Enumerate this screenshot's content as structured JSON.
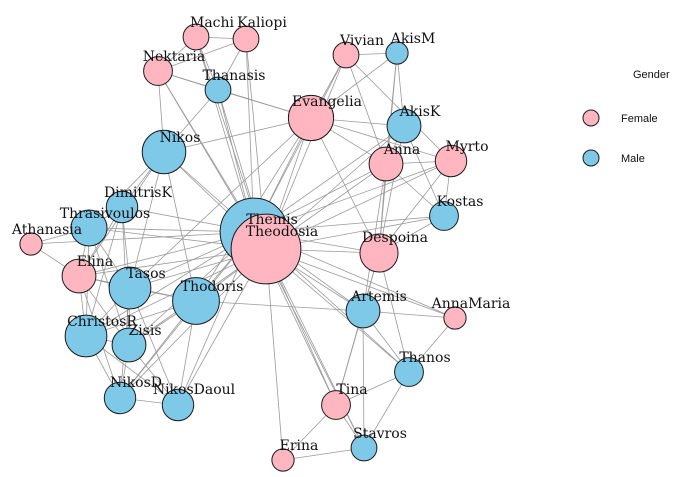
{
  "colors": {
    "female": "#ffb6c1",
    "male": "#7ec8e8",
    "edge": "#9a9a9a"
  },
  "legend": {
    "title": "Gender",
    "items": [
      {
        "label": "Female",
        "color": "#ffb6c1"
      },
      {
        "label": "Male",
        "color": "#7ec8e8"
      }
    ]
  },
  "nodes": [
    {
      "id": "Machi",
      "label": "Machi",
      "gender": "female",
      "degree": 3
    },
    {
      "id": "Kaliopi",
      "label": "Kaliopi",
      "gender": "female",
      "degree": 3
    },
    {
      "id": "Vivian",
      "label": "Vivian",
      "gender": "female",
      "degree": 3
    },
    {
      "id": "AkisM",
      "label": "AkisM",
      "gender": "male",
      "degree": 2
    },
    {
      "id": "Nektaria",
      "label": "Nektaria",
      "gender": "female",
      "degree": 4
    },
    {
      "id": "Thanasis",
      "label": "Thanasis",
      "gender": "male",
      "degree": 3
    },
    {
      "id": "Evangelia",
      "label": "Evangelia",
      "gender": "female",
      "degree": 12
    },
    {
      "id": "AkisK",
      "label": "AkisK",
      "gender": "male",
      "degree": 6
    },
    {
      "id": "Nikos",
      "label": "Nikos",
      "gender": "male",
      "degree": 11
    },
    {
      "id": "Anna",
      "label": "Anna",
      "gender": "female",
      "degree": 6
    },
    {
      "id": "Myrto",
      "label": "Myrto",
      "gender": "female",
      "degree": 5
    },
    {
      "id": "DimitrisK",
      "label": "DimitrisK",
      "gender": "male",
      "degree": 5
    },
    {
      "id": "Kostas",
      "label": "Kostas",
      "gender": "male",
      "degree": 4
    },
    {
      "id": "Thrasivoulos",
      "label": "Thrasivoulos",
      "gender": "male",
      "degree": 7
    },
    {
      "id": "Themis",
      "label": "Themis",
      "gender": "male",
      "degree": 30
    },
    {
      "id": "Theodosia",
      "label": "Theodosia",
      "gender": "female",
      "degree": 32
    },
    {
      "id": "Athanasia",
      "label": "Athanasia",
      "gender": "female",
      "degree": 2
    },
    {
      "id": "Despoina",
      "label": "Despoina",
      "gender": "female",
      "degree": 8
    },
    {
      "id": "Elina",
      "label": "Elina",
      "gender": "female",
      "degree": 6
    },
    {
      "id": "Tasos",
      "label": "Tasos",
      "gender": "male",
      "degree": 10
    },
    {
      "id": "Thodoris",
      "label": "Thodoris",
      "gender": "male",
      "degree": 13
    },
    {
      "id": "Artemis",
      "label": "Artemis",
      "gender": "male",
      "degree": 6
    },
    {
      "id": "AnnaMaria",
      "label": "AnnaMaria",
      "gender": "female",
      "degree": 2
    },
    {
      "id": "ChristosR",
      "label": "ChristosR",
      "gender": "male",
      "degree": 10
    },
    {
      "id": "Zisis",
      "label": "Zisis",
      "gender": "male",
      "degree": 6
    },
    {
      "id": "Thanos",
      "label": "Thanos",
      "gender": "male",
      "degree": 4
    },
    {
      "id": "NikosD",
      "label": "NikosD",
      "gender": "male",
      "degree": 5
    },
    {
      "id": "NikosDaoul",
      "label": "NikosDaoul",
      "gender": "male",
      "degree": 5
    },
    {
      "id": "Tina",
      "label": "Tina",
      "gender": "female",
      "degree": 4
    },
    {
      "id": "Stavros",
      "label": "Stavros",
      "gender": "male",
      "degree": 3
    },
    {
      "id": "Erina",
      "label": "Erina",
      "gender": "female",
      "degree": 2
    }
  ],
  "edges": [
    [
      "Machi",
      "Kaliopi"
    ],
    [
      "Machi",
      "Thanasis"
    ],
    [
      "Machi",
      "Nektaria"
    ],
    [
      "Machi",
      "Themis"
    ],
    [
      "Machi",
      "Theodosia"
    ],
    [
      "Kaliopi",
      "Thanasis"
    ],
    [
      "Kaliopi",
      "Theodosia"
    ],
    [
      "Kaliopi",
      "Themis"
    ],
    [
      "Kaliopi",
      "Nektaria"
    ],
    [
      "Vivian",
      "AkisM"
    ],
    [
      "Vivian",
      "Evangelia"
    ],
    [
      "Vivian",
      "Anna"
    ],
    [
      "Vivian",
      "Themis"
    ],
    [
      "Vivian",
      "Theodosia"
    ],
    [
      "Vivian",
      "Myrto"
    ],
    [
      "AkisM",
      "AkisK"
    ],
    [
      "AkisM",
      "Anna"
    ],
    [
      "AkisM",
      "Evangelia"
    ],
    [
      "AkisM",
      "Despoina"
    ],
    [
      "Nektaria",
      "Thanasis"
    ],
    [
      "Nektaria",
      "Nikos"
    ],
    [
      "Nektaria",
      "Themis"
    ],
    [
      "Nektaria",
      "Theodosia"
    ],
    [
      "Nektaria",
      "Evangelia"
    ],
    [
      "Thanasis",
      "Themis"
    ],
    [
      "Thanasis",
      "Theodosia"
    ],
    [
      "Thanasis",
      "Evangelia"
    ],
    [
      "Thanasis",
      "Nikos"
    ],
    [
      "Evangelia",
      "Themis"
    ],
    [
      "Evangelia",
      "Theodosia"
    ],
    [
      "Evangelia",
      "AkisK"
    ],
    [
      "Evangelia",
      "Anna"
    ],
    [
      "Evangelia",
      "Nikos"
    ],
    [
      "Evangelia",
      "Myrto"
    ],
    [
      "Evangelia",
      "Despoina"
    ],
    [
      "Evangelia",
      "Thodoris"
    ],
    [
      "Evangelia",
      "Tasos"
    ],
    [
      "AkisK",
      "Anna"
    ],
    [
      "AkisK",
      "Themis"
    ],
    [
      "AkisK",
      "Theodosia"
    ],
    [
      "AkisK",
      "Despoina"
    ],
    [
      "AkisK",
      "Kostas"
    ],
    [
      "Anna",
      "Myrto"
    ],
    [
      "Anna",
      "Themis"
    ],
    [
      "Anna",
      "Theodosia"
    ],
    [
      "Anna",
      "Kostas"
    ],
    [
      "Anna",
      "Despoina"
    ],
    [
      "Anna",
      "Artemis"
    ],
    [
      "Myrto",
      "Kostas"
    ],
    [
      "Myrto",
      "Themis"
    ],
    [
      "Myrto",
      "Theodosia"
    ],
    [
      "Myrto",
      "Despoina"
    ],
    [
      "Kostas",
      "Theodosia"
    ],
    [
      "Kostas",
      "Themis"
    ],
    [
      "Nikos",
      "Themis"
    ],
    [
      "Nikos",
      "Theodosia"
    ],
    [
      "Nikos",
      "DimitrisK"
    ],
    [
      "Nikos",
      "Thrasivoulos"
    ],
    [
      "Nikos",
      "Tasos"
    ],
    [
      "Nikos",
      "Thodoris"
    ],
    [
      "Nikos",
      "Elina"
    ],
    [
      "DimitrisK",
      "Thrasivoulos"
    ],
    [
      "DimitrisK",
      "Themis"
    ],
    [
      "DimitrisK",
      "Tasos"
    ],
    [
      "DimitrisK",
      "ChristosR"
    ],
    [
      "DimitrisK",
      "Elina"
    ],
    [
      "DimitrisK",
      "Zisis"
    ],
    [
      "Thrasivoulos",
      "Athanasia"
    ],
    [
      "Thrasivoulos",
      "Themis"
    ],
    [
      "Thrasivoulos",
      "Theodosia"
    ],
    [
      "Thrasivoulos",
      "Tasos"
    ],
    [
      "Thrasivoulos",
      "ChristosR"
    ],
    [
      "Thrasivoulos",
      "Elina"
    ],
    [
      "Thrasivoulos",
      "Zisis"
    ],
    [
      "Athanasia",
      "Themis"
    ],
    [
      "Athanasia",
      "Elina"
    ],
    [
      "Themis",
      "Theodosia"
    ],
    [
      "Themis",
      "Despoina"
    ],
    [
      "Themis",
      "Elina"
    ],
    [
      "Themis",
      "Tasos"
    ],
    [
      "Themis",
      "Thodoris"
    ],
    [
      "Themis",
      "Artemis"
    ],
    [
      "Themis",
      "ChristosR"
    ],
    [
      "Themis",
      "Zisis"
    ],
    [
      "Themis",
      "Thanos"
    ],
    [
      "Themis",
      "NikosD"
    ],
    [
      "Themis",
      "NikosDaoul"
    ],
    [
      "Themis",
      "Tina"
    ],
    [
      "Themis",
      "Stavros"
    ],
    [
      "Themis",
      "AnnaMaria"
    ],
    [
      "Theodosia",
      "Despoina"
    ],
    [
      "Theodosia",
      "Elina"
    ],
    [
      "Theodosia",
      "Tasos"
    ],
    [
      "Theodosia",
      "Thodoris"
    ],
    [
      "Theodosia",
      "Artemis"
    ],
    [
      "Theodosia",
      "ChristosR"
    ],
    [
      "Theodosia",
      "Zisis"
    ],
    [
      "Theodosia",
      "Thanos"
    ],
    [
      "Theodosia",
      "NikosD"
    ],
    [
      "Theodosia",
      "NikosDaoul"
    ],
    [
      "Theodosia",
      "Tina"
    ],
    [
      "Theodosia",
      "Erina"
    ],
    [
      "Theodosia",
      "Stavros"
    ],
    [
      "Theodosia",
      "AnnaMaria"
    ],
    [
      "Despoina",
      "Artemis"
    ],
    [
      "Despoina",
      "Thanos"
    ],
    [
      "Despoina",
      "Tina"
    ],
    [
      "Despoina",
      "Kostas"
    ],
    [
      "Elina",
      "Tasos"
    ],
    [
      "Elina",
      "ChristosR"
    ],
    [
      "Elina",
      "Zisis"
    ],
    [
      "Elina",
      "NikosD"
    ],
    [
      "Elina",
      "Thodoris"
    ],
    [
      "Tasos",
      "Thodoris"
    ],
    [
      "Tasos",
      "ChristosR"
    ],
    [
      "Tasos",
      "Zisis"
    ],
    [
      "Tasos",
      "NikosD"
    ],
    [
      "Tasos",
      "NikosDaoul"
    ],
    [
      "Thodoris",
      "ChristosR"
    ],
    [
      "Thodoris",
      "Zisis"
    ],
    [
      "Thodoris",
      "NikosD"
    ],
    [
      "Thodoris",
      "NikosDaoul"
    ],
    [
      "Thodoris",
      "Artemis"
    ],
    [
      "Artemis",
      "AnnaMaria"
    ],
    [
      "Artemis",
      "Tina"
    ],
    [
      "Artemis",
      "Thanos"
    ],
    [
      "Artemis",
      "Stavros"
    ],
    [
      "ChristosR",
      "Zisis"
    ],
    [
      "ChristosR",
      "NikosD"
    ],
    [
      "ChristosR",
      "NikosDaoul"
    ],
    [
      "Zisis",
      "NikosDaoul"
    ],
    [
      "Zisis",
      "NikosD"
    ],
    [
      "NikosD",
      "NikosDaoul"
    ],
    [
      "Thanos",
      "Stavros"
    ],
    [
      "Thanos",
      "Tina"
    ],
    [
      "Thanos",
      "AnnaMaria"
    ],
    [
      "Tina",
      "Erina"
    ],
    [
      "Tina",
      "Stavros"
    ],
    [
      "Erina",
      "Stavros"
    ]
  ]
}
